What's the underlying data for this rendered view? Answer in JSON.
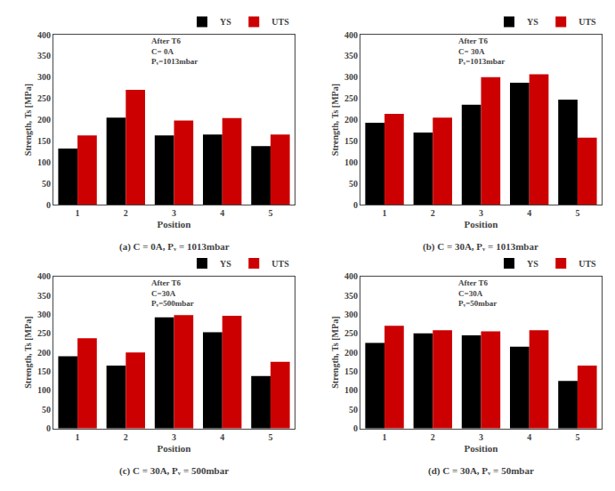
{
  "chart_data": [
    {
      "type": "bar",
      "title": "(a) C = 0A, Pᵥ = 1013mbar",
      "annotation": "After T6\nC= 0A\nPᵥ=1013mbar",
      "xlabel": "Position",
      "ylabel": "Strength, Ts [MPa]",
      "categories": [
        "1",
        "2",
        "3",
        "4",
        "5"
      ],
      "series": [
        {
          "name": "YS",
          "color": "#000000",
          "values": [
            132,
            205,
            163,
            165,
            138
          ]
        },
        {
          "name": "UTS",
          "color": "#cc0000",
          "values": [
            163,
            270,
            198,
            204,
            165
          ]
        }
      ],
      "ylim": [
        0,
        400
      ],
      "yticks": [
        0,
        50,
        100,
        150,
        200,
        250,
        300,
        350,
        400
      ],
      "legend": "upper right",
      "grid": false
    },
    {
      "type": "bar",
      "title": "(b) C = 30A, Pᵥ = 1013mbar",
      "annotation": "After T6\nC= 30A\nPᵥ=1013mbar",
      "xlabel": "Position",
      "ylabel": "Strength, Ts [MPa]",
      "categories": [
        "1",
        "2",
        "3",
        "4",
        "5"
      ],
      "series": [
        {
          "name": "YS",
          "color": "#000000",
          "values": [
            193,
            170,
            235,
            287,
            247
          ]
        },
        {
          "name": "UTS",
          "color": "#cc0000",
          "values": [
            214,
            205,
            300,
            307,
            158
          ]
        }
      ],
      "ylim": [
        0,
        400
      ],
      "yticks": [
        0,
        50,
        100,
        150,
        200,
        250,
        300,
        350,
        400
      ],
      "legend": "upper right",
      "grid": false
    },
    {
      "type": "bar",
      "title": "(c) C = 30A, Pᵥ = 500mbar",
      "annotation": "After T6\nC=30A\nPᵥ=500mbar",
      "xlabel": "Position",
      "ylabel": "Strength, Ts [MPa]",
      "categories": [
        "1",
        "2",
        "3",
        "4",
        "5"
      ],
      "series": [
        {
          "name": "YS",
          "color": "#000000",
          "values": [
            190,
            165,
            292,
            253,
            138
          ]
        },
        {
          "name": "UTS",
          "color": "#cc0000",
          "values": [
            237,
            200,
            298,
            296,
            175
          ]
        }
      ],
      "ylim": [
        0,
        400
      ],
      "yticks": [
        0,
        50,
        100,
        150,
        200,
        250,
        300,
        350,
        400
      ],
      "legend": "upper right",
      "grid": false
    },
    {
      "type": "bar",
      "title": "(d) C = 30A, Pᵥ = 50mbar",
      "annotation": "After T6\nC=30A\nPᵥ=50mbar",
      "xlabel": "Position",
      "ylabel": "Strength, Ts [MPa]",
      "categories": [
        "1",
        "2",
        "3",
        "4",
        "5"
      ],
      "series": [
        {
          "name": "YS",
          "color": "#000000",
          "values": [
            225,
            250,
            245,
            215,
            125
          ]
        },
        {
          "name": "UTS",
          "color": "#cc0000",
          "values": [
            270,
            258,
            255,
            258,
            165
          ]
        }
      ],
      "ylim": [
        0,
        400
      ],
      "yticks": [
        0,
        50,
        100,
        150,
        200,
        250,
        300,
        350,
        400
      ],
      "legend": "upper right",
      "grid": false
    }
  ]
}
